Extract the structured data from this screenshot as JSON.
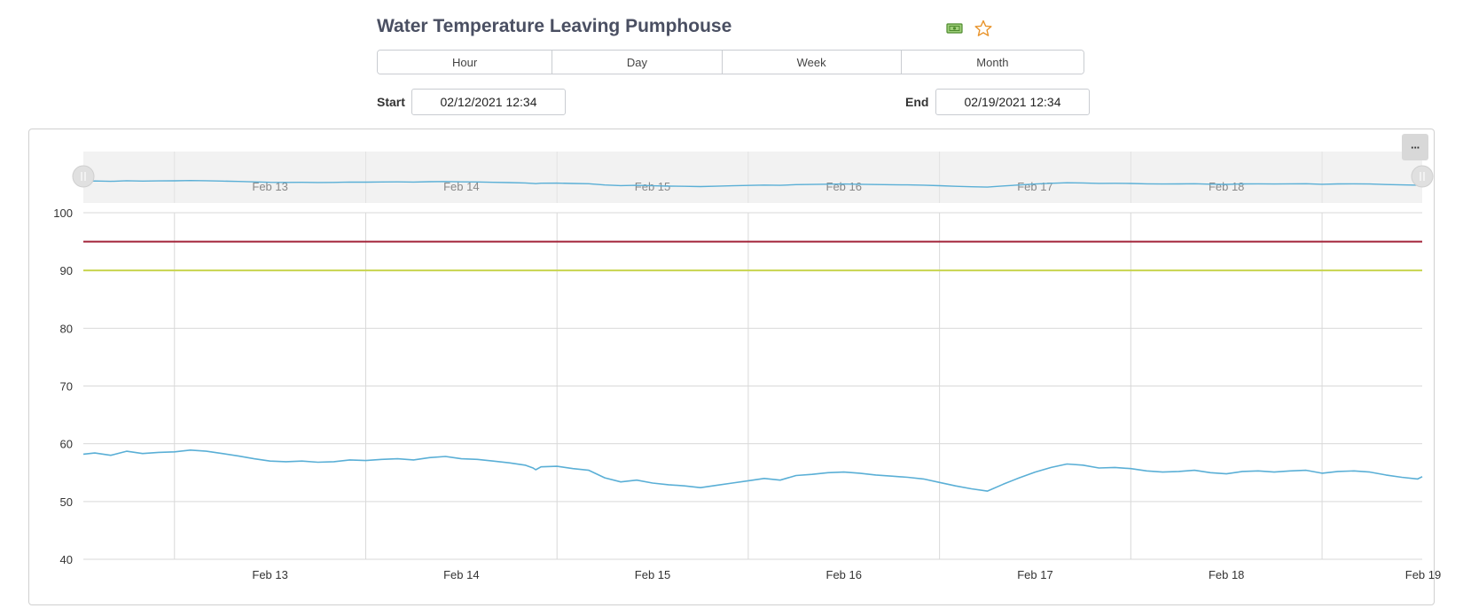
{
  "header": {
    "title": "Water Temperature Leaving Pumphouse",
    "icons": [
      "money-icon",
      "star-icon"
    ]
  },
  "range_buttons": [
    "Hour",
    "Day",
    "Week",
    "Month"
  ],
  "dates": {
    "start_label": "Start",
    "start_value": "02/12/2021 12:34",
    "end_label": "End",
    "end_value": "02/19/2021 12:34"
  },
  "menu_label": "···",
  "colors": {
    "series": "#5aafd6",
    "alarm_high": "#a3253a",
    "alarm_warn": "#c8d44f",
    "navigator_bg": "#f2f2f2",
    "grid": "#d9d9d9"
  },
  "chart_data": {
    "type": "line",
    "title": "",
    "xlabel": "",
    "ylabel": "",
    "ylim": [
      40,
      100
    ],
    "xlim": [
      "2021-02-12 12:34",
      "2021-02-19 12:34"
    ],
    "yticks": [
      40,
      50,
      60,
      70,
      80,
      90,
      100
    ],
    "xticks": [
      "Feb 13",
      "Feb 14",
      "Feb 15",
      "Feb 16",
      "Feb 17",
      "Feb 18",
      "Feb 19"
    ],
    "grid": true,
    "navigator": true,
    "thresholds": [
      {
        "value": 95,
        "color": "#a3253a"
      },
      {
        "value": 90,
        "color": "#c8d44f"
      }
    ],
    "series": [
      {
        "color": "#5aafd6",
        "x": [
          "2021-02-12 12:34",
          "2021-02-12 14:00",
          "2021-02-12 16:00",
          "2021-02-12 18:00",
          "2021-02-12 20:00",
          "2021-02-12 22:00",
          "2021-02-13 00:00",
          "2021-02-13 02:00",
          "2021-02-13 04:00",
          "2021-02-13 06:00",
          "2021-02-13 08:00",
          "2021-02-13 10:00",
          "2021-02-13 12:00",
          "2021-02-13 14:00",
          "2021-02-13 16:00",
          "2021-02-13 18:00",
          "2021-02-13 20:00",
          "2021-02-13 22:00",
          "2021-02-14 00:00",
          "2021-02-14 02:00",
          "2021-02-14 04:00",
          "2021-02-14 06:00",
          "2021-02-14 08:00",
          "2021-02-14 10:00",
          "2021-02-14 12:00",
          "2021-02-14 14:00",
          "2021-02-14 16:00",
          "2021-02-14 18:00",
          "2021-02-14 20:00",
          "2021-02-14 21:00",
          "2021-02-14 21:20",
          "2021-02-14 22:00",
          "2021-02-15 00:00",
          "2021-02-15 02:00",
          "2021-02-15 04:00",
          "2021-02-15 06:00",
          "2021-02-15 08:00",
          "2021-02-15 10:00",
          "2021-02-15 12:00",
          "2021-02-15 14:00",
          "2021-02-15 16:00",
          "2021-02-15 18:00",
          "2021-02-15 20:00",
          "2021-02-15 22:00",
          "2021-02-16 00:00",
          "2021-02-16 02:00",
          "2021-02-16 04:00",
          "2021-02-16 06:00",
          "2021-02-16 08:00",
          "2021-02-16 10:00",
          "2021-02-16 12:00",
          "2021-02-16 14:00",
          "2021-02-16 16:00",
          "2021-02-16 18:00",
          "2021-02-16 20:00",
          "2021-02-16 22:00",
          "2021-02-17 00:00",
          "2021-02-17 02:00",
          "2021-02-17 04:00",
          "2021-02-17 06:00",
          "2021-02-17 08:00",
          "2021-02-17 10:00",
          "2021-02-17 12:00",
          "2021-02-17 14:00",
          "2021-02-17 16:00",
          "2021-02-17 18:00",
          "2021-02-17 20:00",
          "2021-02-17 22:00",
          "2021-02-18 00:00",
          "2021-02-18 02:00",
          "2021-02-18 04:00",
          "2021-02-18 06:00",
          "2021-02-18 08:00",
          "2021-02-18 10:00",
          "2021-02-18 12:00",
          "2021-02-18 14:00",
          "2021-02-18 16:00",
          "2021-02-18 18:00",
          "2021-02-18 20:00",
          "2021-02-18 22:00",
          "2021-02-19 00:00",
          "2021-02-19 02:00",
          "2021-02-19 04:00",
          "2021-02-19 06:00",
          "2021-02-19 08:00",
          "2021-02-19 10:00",
          "2021-02-19 12:00",
          "2021-02-19 12:34"
        ],
        "y": [
          58.2,
          58.4,
          58.0,
          58.7,
          58.3,
          58.5,
          58.6,
          58.9,
          58.7,
          58.3,
          57.9,
          57.4,
          57.0,
          56.9,
          57.0,
          56.8,
          56.9,
          57.2,
          57.1,
          57.3,
          57.4,
          57.2,
          57.6,
          57.8,
          57.4,
          57.3,
          57.0,
          56.7,
          56.3,
          55.8,
          55.5,
          56.0,
          56.1,
          55.7,
          55.4,
          54.1,
          53.4,
          53.7,
          53.2,
          52.9,
          52.7,
          52.4,
          52.8,
          53.2,
          53.6,
          54.0,
          53.7,
          54.5,
          54.7,
          55.0,
          55.1,
          54.9,
          54.6,
          54.4,
          54.2,
          53.9,
          53.3,
          52.7,
          52.2,
          51.8,
          53.0,
          54.1,
          55.1,
          55.9,
          56.5,
          56.3,
          55.8,
          55.9,
          55.7,
          55.3,
          55.1,
          55.2,
          55.4,
          55.0,
          54.8,
          55.2,
          55.3,
          55.1,
          55.3,
          55.4,
          54.9,
          55.2,
          55.3,
          55.1,
          54.6,
          54.2,
          53.9,
          54.3
        ]
      }
    ]
  }
}
